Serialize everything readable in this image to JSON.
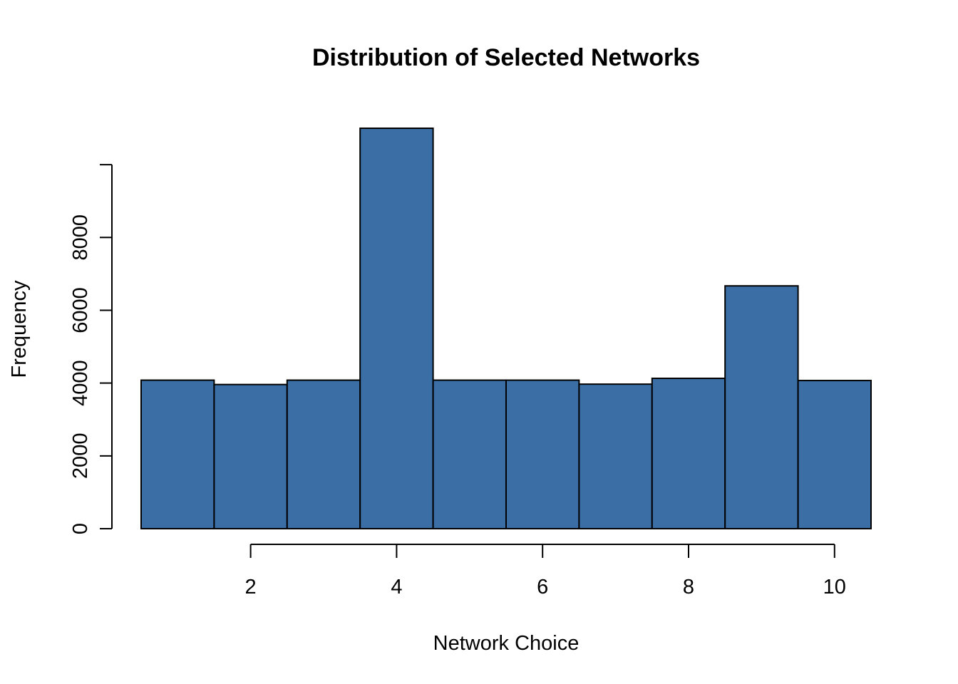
{
  "chart_data": {
    "type": "bar",
    "title": "Distribution of Selected Networks",
    "xlabel": "Network Choice",
    "ylabel": "Frequency",
    "x": [
      1,
      2,
      3,
      4,
      5,
      6,
      7,
      8,
      9,
      10
    ],
    "values": [
      4080,
      3960,
      4080,
      11000,
      4080,
      4080,
      3970,
      4130,
      6670,
      4070
    ],
    "bin_width": 1,
    "xlim": [
      0.5,
      10.5
    ],
    "ylim": [
      0,
      11000
    ],
    "x_ticks": [
      2,
      4,
      6,
      8,
      10
    ],
    "y_ticks": [
      0,
      2000,
      4000,
      6000,
      8000,
      10000
    ],
    "y_tick_labels": [
      "0",
      "2000",
      "4000",
      "6000",
      "8000",
      ""
    ],
    "bar_color": "#3a6ea5",
    "grid": false,
    "legend": "none"
  }
}
